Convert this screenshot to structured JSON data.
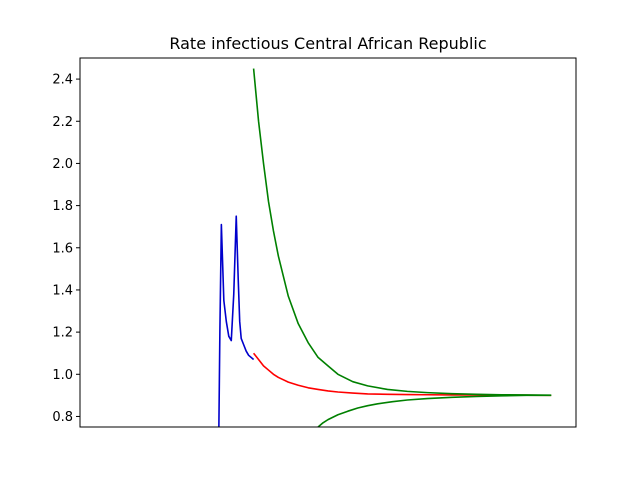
{
  "chart_data": {
    "type": "line",
    "title": "Rate infectious Central African Republic",
    "xlabel": "",
    "ylabel": "",
    "x_range": [
      0,
      100
    ],
    "ylim": [
      0.75,
      2.5
    ],
    "y_ticks": [
      "0.8",
      "1.0",
      "1.2",
      "1.4",
      "1.6",
      "1.8",
      "2.0",
      "2.2",
      "2.4"
    ],
    "y_tick_values": [
      0.8,
      1.0,
      1.2,
      1.4,
      1.6,
      1.8,
      2.0,
      2.2,
      2.4
    ],
    "x_ticks_shown": false,
    "grid": false,
    "legend": "none",
    "series": [
      {
        "color": "#0000cc",
        "x": [
          28.0,
          28.2,
          28.5,
          29.0,
          29.5,
          30.0,
          30.5,
          31.0,
          31.5,
          31.9,
          32.2,
          32.5,
          33.0,
          33.5,
          34.0,
          35.0
        ],
        "y": [
          0.75,
          1.2,
          1.71,
          1.35,
          1.25,
          1.18,
          1.16,
          1.38,
          1.75,
          1.45,
          1.25,
          1.17,
          1.14,
          1.11,
          1.09,
          1.07
        ]
      },
      {
        "color": "#ff0000",
        "x": [
          35.0,
          36.0,
          37.0,
          38.0,
          39.0,
          40.0,
          42.0,
          44.0,
          46.0,
          48.0,
          50.0,
          52.0,
          55.0,
          58.0,
          62.0,
          66.0,
          70.0,
          75.0,
          80.0,
          85.0,
          90.0,
          95.0
        ],
        "y": [
          1.1,
          1.07,
          1.04,
          1.02,
          1.0,
          0.985,
          0.963,
          0.948,
          0.936,
          0.928,
          0.921,
          0.916,
          0.911,
          0.907,
          0.905,
          0.904,
          0.903,
          0.902,
          0.902,
          0.901,
          0.901,
          0.9
        ]
      },
      {
        "color": "#008000",
        "x": [
          35.0,
          36.0,
          37.0,
          38.0,
          39.0,
          40.0,
          42.0,
          44.0,
          46.0,
          48.0,
          50.0,
          52.0,
          55.0,
          58.0,
          62.0,
          66.0,
          70.0,
          75.0,
          80.0,
          85.0,
          90.0,
          95.0
        ],
        "y": [
          2.45,
          2.2,
          2.0,
          1.82,
          1.68,
          1.56,
          1.37,
          1.24,
          1.15,
          1.08,
          1.04,
          1.0,
          0.965,
          0.945,
          0.928,
          0.919,
          0.913,
          0.908,
          0.905,
          0.903,
          0.902,
          0.901
        ]
      },
      {
        "color": "#008000",
        "x": [
          48.0,
          49.0,
          50.0,
          52.0,
          54.0,
          56.0,
          58.0,
          60.0,
          63.0,
          66.0,
          70.0,
          75.0,
          80.0,
          85.0,
          90.0,
          95.0
        ],
        "y": [
          0.75,
          0.77,
          0.785,
          0.808,
          0.825,
          0.84,
          0.851,
          0.86,
          0.87,
          0.878,
          0.885,
          0.891,
          0.895,
          0.898,
          0.9,
          0.9
        ]
      }
    ]
  }
}
